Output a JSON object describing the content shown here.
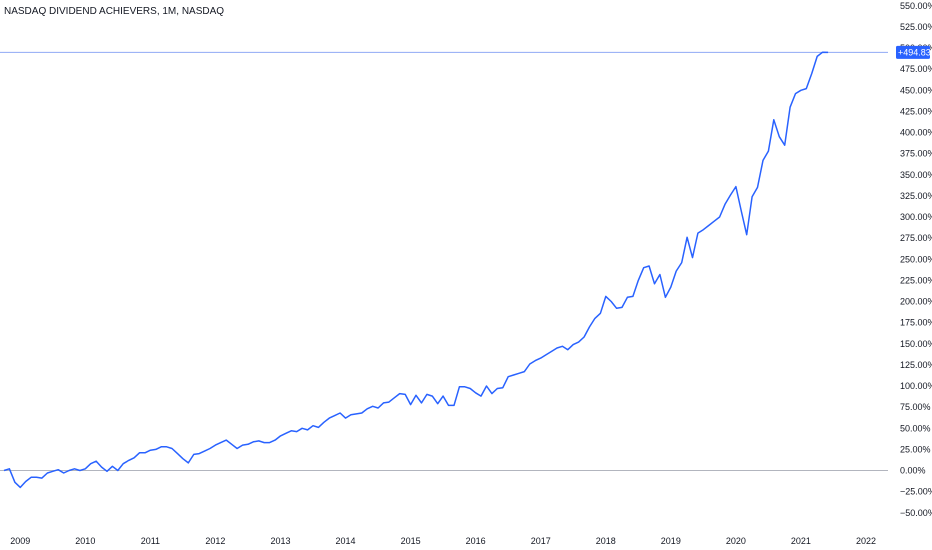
{
  "chart_data": {
    "type": "line",
    "title": "NASDAQ DIVIDEND ACHIEVERS, 1M, NASDAQ",
    "ylim": [
      -55,
      550
    ],
    "y_ticks": [
      550,
      525,
      500,
      475,
      450,
      425,
      400,
      375,
      350,
      325,
      300,
      275,
      250,
      225,
      200,
      175,
      150,
      125,
      100,
      75,
      50,
      25,
      0,
      -25,
      -50
    ],
    "y_tick_labels": [
      "550.00%",
      "525.00%",
      "500.00%",
      "475.00%",
      "450.00%",
      "425.00%",
      "400.00%",
      "375.00%",
      "350.00%",
      "325.00%",
      "300.00%",
      "275.00%",
      "250.00%",
      "225.00%",
      "200.00%",
      "175.00%",
      "150.00%",
      "125.00%",
      "100.00%",
      "75.00%",
      "50.00%",
      "25.00%",
      "0.00%",
      "−25.00%",
      "−50.00%"
    ],
    "x_ticks": [
      "2009",
      "2010",
      "2011",
      "2012",
      "2013",
      "2014",
      "2015",
      "2016",
      "2017",
      "2018",
      "2019",
      "2020",
      "2021",
      "2022"
    ],
    "baseline": 0,
    "last_value": 494.83,
    "last_value_label": "+494.83%",
    "line_color": "#2962ff",
    "badge_color": "#2962ff",
    "baseline_color": "#b2b5be",
    "series": [
      {
        "x": [
          2008.75,
          2008.833,
          2008.917,
          2009.0,
          2009.083,
          2009.167,
          2009.25,
          2009.333,
          2009.417,
          2009.5,
          2009.583,
          2009.667,
          2009.75,
          2009.833,
          2009.917,
          2010.0,
          2010.083,
          2010.167,
          2010.25,
          2010.333,
          2010.417,
          2010.5,
          2010.583,
          2010.667,
          2010.75,
          2010.833,
          2010.917,
          2011.0,
          2011.083,
          2011.167,
          2011.25,
          2011.333,
          2011.417,
          2011.5,
          2011.583,
          2011.667,
          2011.75,
          2011.833,
          2011.917,
          2012.0,
          2012.083,
          2012.167,
          2012.25,
          2012.333,
          2012.417,
          2012.5,
          2012.583,
          2012.667,
          2012.75,
          2012.833,
          2012.917,
          2013.0,
          2013.083,
          2013.167,
          2013.25,
          2013.333,
          2013.417,
          2013.5,
          2013.583,
          2013.667,
          2013.75,
          2013.833,
          2013.917,
          2014.0,
          2014.083,
          2014.167,
          2014.25,
          2014.333,
          2014.417,
          2014.5,
          2014.583,
          2014.667,
          2014.75,
          2014.833,
          2014.917,
          2015.0,
          2015.083,
          2015.167,
          2015.25,
          2015.333,
          2015.417,
          2015.5,
          2015.583,
          2015.667,
          2015.75,
          2015.833,
          2015.917,
          2016.0,
          2016.083,
          2016.167,
          2016.25,
          2016.333,
          2016.417,
          2016.5,
          2016.583,
          2016.667,
          2016.75,
          2016.833,
          2016.917,
          2017.0,
          2017.083,
          2017.167,
          2017.25,
          2017.333,
          2017.417,
          2017.5,
          2017.583,
          2017.667,
          2017.75,
          2017.833,
          2017.917,
          2018.0,
          2018.083,
          2018.167,
          2018.25,
          2018.333,
          2018.417,
          2018.5,
          2018.583,
          2018.667,
          2018.75,
          2018.833,
          2018.917,
          2019.0,
          2019.083,
          2019.167,
          2019.25,
          2019.333,
          2019.417,
          2019.5,
          2019.583,
          2019.667,
          2019.75,
          2019.833,
          2019.917,
          2020.0,
          2020.083,
          2020.167,
          2020.25,
          2020.333,
          2020.417,
          2020.5,
          2020.583,
          2020.667,
          2020.75,
          2020.833,
          2020.917,
          2021.0,
          2021.083,
          2021.167,
          2021.25,
          2021.333,
          2021.417
        ],
        "y": [
          0,
          2,
          -14,
          -20,
          -13,
          -8,
          -8,
          -9,
          -3,
          -1,
          1,
          -3,
          0,
          2,
          0,
          2,
          8,
          11,
          4,
          -1,
          5,
          0,
          8,
          12,
          15,
          21,
          21,
          24,
          25,
          28,
          28,
          26,
          20,
          14,
          9,
          19,
          20,
          23,
          26,
          30,
          33,
          36,
          31,
          26,
          30,
          31,
          34,
          35,
          33,
          33,
          36,
          41,
          44,
          47,
          46,
          50,
          48,
          53,
          51,
          57,
          62,
          65,
          68,
          62,
          66,
          67,
          68,
          73,
          76,
          74,
          80,
          81,
          86,
          91,
          90,
          78,
          89,
          80,
          90,
          88,
          79,
          88,
          77,
          77,
          99,
          99,
          97,
          92,
          88,
          100,
          91,
          97,
          98,
          111,
          113,
          115,
          117,
          126,
          130,
          133,
          137,
          141,
          145,
          147,
          143,
          149,
          152,
          158,
          170,
          180,
          186,
          206,
          200,
          192,
          193,
          205,
          206,
          225,
          240,
          242,
          221,
          232,
          205,
          217,
          236,
          246,
          276,
          252,
          281,
          285,
          290,
          295,
          300,
          315,
          326,
          336,
          307,
          279,
          324,
          335,
          367,
          378,
          415,
          395,
          385,
          430,
          446,
          450,
          452,
          470,
          490,
          495,
          494.83
        ]
      }
    ]
  }
}
